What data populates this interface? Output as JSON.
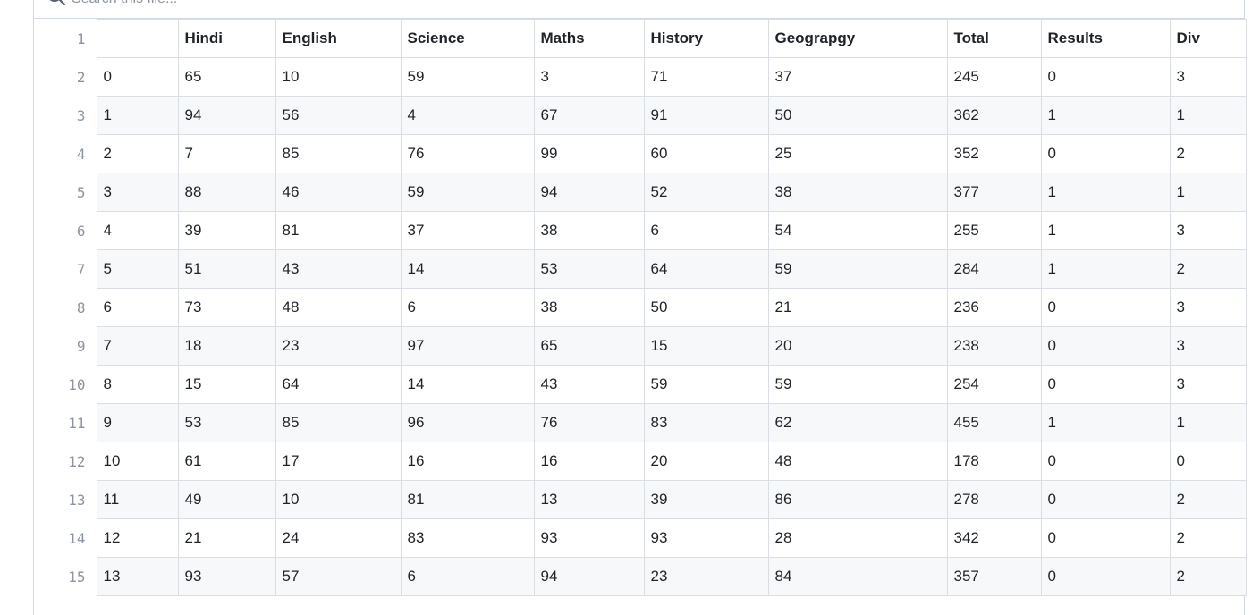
{
  "search": {
    "placeholder": "Search this file..."
  },
  "table": {
    "header_line": "1",
    "columns": [
      "",
      "Hindi",
      "English",
      "Science",
      "Maths",
      "History",
      "Geograpgy",
      "Total",
      "Results",
      "Div"
    ],
    "rows": [
      {
        "line": "2",
        "cells": [
          "0",
          "65",
          "10",
          "59",
          "3",
          "71",
          "37",
          "245",
          "0",
          "3"
        ]
      },
      {
        "line": "3",
        "cells": [
          "1",
          "94",
          "56",
          "4",
          "67",
          "91",
          "50",
          "362",
          "1",
          "1"
        ]
      },
      {
        "line": "4",
        "cells": [
          "2",
          "7",
          "85",
          "76",
          "99",
          "60",
          "25",
          "352",
          "0",
          "2"
        ]
      },
      {
        "line": "5",
        "cells": [
          "3",
          "88",
          "46",
          "59",
          "94",
          "52",
          "38",
          "377",
          "1",
          "1"
        ]
      },
      {
        "line": "6",
        "cells": [
          "4",
          "39",
          "81",
          "37",
          "38",
          "6",
          "54",
          "255",
          "1",
          "3"
        ]
      },
      {
        "line": "7",
        "cells": [
          "5",
          "51",
          "43",
          "14",
          "53",
          "64",
          "59",
          "284",
          "1",
          "2"
        ]
      },
      {
        "line": "8",
        "cells": [
          "6",
          "73",
          "48",
          "6",
          "38",
          "50",
          "21",
          "236",
          "0",
          "3"
        ]
      },
      {
        "line": "9",
        "cells": [
          "7",
          "18",
          "23",
          "97",
          "65",
          "15",
          "20",
          "238",
          "0",
          "3"
        ]
      },
      {
        "line": "10",
        "cells": [
          "8",
          "15",
          "64",
          "14",
          "43",
          "59",
          "59",
          "254",
          "0",
          "3"
        ]
      },
      {
        "line": "11",
        "cells": [
          "9",
          "53",
          "85",
          "96",
          "76",
          "83",
          "62",
          "455",
          "1",
          "1"
        ]
      },
      {
        "line": "12",
        "cells": [
          "10",
          "61",
          "17",
          "16",
          "16",
          "20",
          "48",
          "178",
          "0",
          "0"
        ]
      },
      {
        "line": "13",
        "cells": [
          "11",
          "49",
          "10",
          "81",
          "13",
          "39",
          "86",
          "278",
          "0",
          "2"
        ]
      },
      {
        "line": "14",
        "cells": [
          "12",
          "21",
          "24",
          "83",
          "93",
          "93",
          "28",
          "342",
          "0",
          "2"
        ]
      },
      {
        "line": "15",
        "cells": [
          "13",
          "93",
          "57",
          "6",
          "94",
          "23",
          "84",
          "357",
          "0",
          "2"
        ]
      }
    ]
  }
}
